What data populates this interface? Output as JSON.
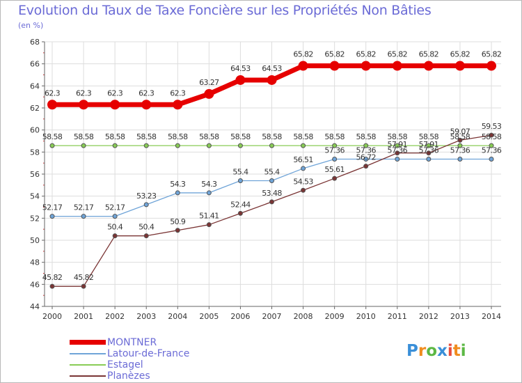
{
  "title": "Evolution du Taux de Taxe Foncière sur les Propriétés Non Bâties",
  "unit": "(en %)",
  "logo": [
    "P",
    "r",
    "o",
    "x",
    "i",
    "t",
    "i"
  ],
  "logo_colors": [
    "#3a8fd8",
    "#f08c1e",
    "#5cb844",
    "#3a8fd8",
    "#e84c3c",
    "#f08c1e",
    "#5cb844"
  ],
  "chart_data": {
    "type": "line",
    "title": "Evolution du Taux de Taxe Foncière sur les Propriétés Non Bâties",
    "ylabel": "(en %)",
    "xlabel": "",
    "ylim": [
      44,
      68
    ],
    "yticks": [
      44,
      46,
      48,
      50,
      52,
      54,
      56,
      58,
      60,
      62,
      64,
      66,
      68
    ],
    "categories": [
      "2000",
      "2001",
      "2002",
      "2003",
      "2004",
      "2005",
      "2006",
      "2007",
      "2008",
      "2009",
      "2010",
      "2011",
      "2012",
      "2013",
      "2014"
    ],
    "series": [
      {
        "name": "MONTNER",
        "color": "#e60000",
        "values": [
          62.3,
          62.3,
          62.3,
          62.3,
          62.3,
          63.27,
          64.53,
          64.53,
          65.82,
          65.82,
          65.82,
          65.82,
          65.82,
          65.82,
          65.82
        ],
        "labels": [
          "62.3",
          "62.3",
          "62.3",
          "62.3",
          "62.3",
          "63.27",
          "64.53",
          "64.53",
          "65.82",
          "65.82",
          "65.82",
          "65.82",
          "65.82",
          "65.82",
          "65.82"
        ]
      },
      {
        "name": "Latour-de-France",
        "color": "#6fa4d8",
        "values": [
          52.17,
          52.17,
          52.17,
          53.23,
          54.3,
          54.3,
          55.4,
          55.4,
          56.51,
          57.36,
          57.36,
          57.36,
          57.36,
          57.36,
          57.36
        ],
        "labels": [
          "52.17",
          "52.17",
          "52.17",
          "53.23",
          "54.3",
          "54.3",
          "55.4",
          "55.4",
          "56.51",
          "57.36",
          "57.36",
          "57.36",
          "57.36",
          "57.36",
          "57.36"
        ]
      },
      {
        "name": "Estagel",
        "color": "#88cc55",
        "values": [
          58.58,
          58.58,
          58.58,
          58.58,
          58.58,
          58.58,
          58.58,
          58.58,
          58.58,
          58.58,
          58.58,
          58.58,
          58.58,
          58.58,
          58.58
        ],
        "labels": [
          "58.58",
          "58.58",
          "58.58",
          "58.58",
          "58.58",
          "58.58",
          "58.58",
          "58.58",
          "58.58",
          "58.58",
          "58.58",
          "58.58",
          "58.58",
          "58.58",
          "58.58"
        ]
      },
      {
        "name": "Planèzes",
        "color": "#7a3434",
        "values": [
          45.82,
          45.82,
          50.4,
          50.4,
          50.9,
          51.41,
          52.44,
          53.48,
          54.53,
          55.61,
          56.72,
          57.91,
          57.91,
          59.07,
          59.53
        ],
        "labels": [
          "45.82",
          "45.82",
          "50.4",
          "50.4",
          "50.9",
          "51.41",
          "52.44",
          "53.48",
          "54.53",
          "55.61",
          "56.72",
          "57.91",
          "57.91",
          "59.07",
          "59.53"
        ]
      }
    ]
  }
}
